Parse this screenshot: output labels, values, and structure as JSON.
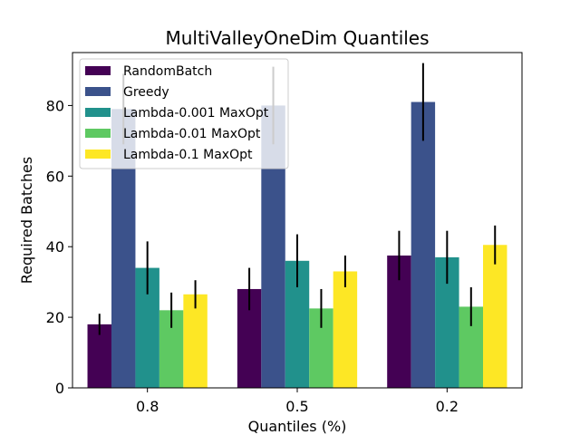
{
  "chart_data": {
    "type": "bar",
    "title": "MultiValleyOneDim Quantiles",
    "xlabel": "Quantiles (%)",
    "ylabel": "Required Batches",
    "categories": [
      "0.8",
      "0.5",
      "0.2"
    ],
    "ylim": [
      0,
      95
    ],
    "yticks": [
      0,
      20,
      40,
      60,
      80
    ],
    "grid": false,
    "legend_position": "top-left",
    "series": [
      {
        "name": "RandomBatch",
        "color": "#440154",
        "values": [
          18,
          28,
          37.5
        ],
        "errors": [
          3,
          6,
          7
        ]
      },
      {
        "name": "Greedy",
        "color": "#3b528b",
        "values": [
          79,
          80,
          81
        ],
        "errors": [
          10,
          11,
          11
        ]
      },
      {
        "name": "Lambda-0.001 MaxOpt",
        "color": "#21918c",
        "values": [
          34,
          36,
          37
        ],
        "errors": [
          7.5,
          7.5,
          7.5
        ]
      },
      {
        "name": "Lambda-0.01 MaxOpt",
        "color": "#5ec962",
        "values": [
          22,
          22.5,
          23
        ],
        "errors": [
          5,
          5.5,
          5.5
        ]
      },
      {
        "name": "Lambda-0.1 MaxOpt",
        "color": "#fde725",
        "values": [
          26.5,
          33,
          40.5
        ],
        "errors": [
          4,
          4.5,
          5.5
        ]
      }
    ]
  }
}
